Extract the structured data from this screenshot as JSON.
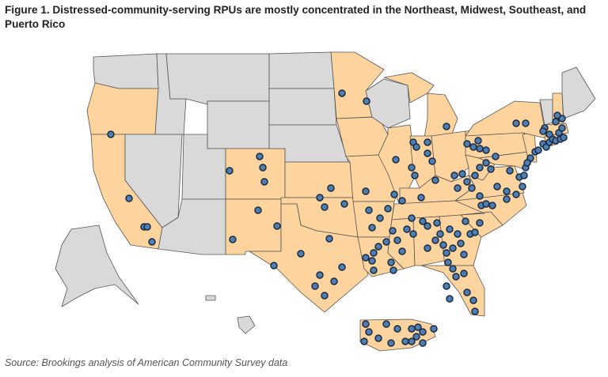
{
  "figure": {
    "title": "Figure 1. Distressed-community-serving RPUs are mostly concentrated in the Northeast, Midwest, Southeast, and Puerto Rico",
    "source": "Source: Brookings analysis of American Community Survey data"
  },
  "colors": {
    "highlighted_region": "#fdd49e",
    "other_region": "#d9d9d9",
    "border": "#555555",
    "marker_fill": "#4d7fb5",
    "marker_stroke": "#1c2b3e"
  },
  "regions": {
    "highlighted": [
      "Oregon",
      "California",
      "Colorado",
      "New Mexico",
      "Texas",
      "Oklahoma",
      "Kansas",
      "Minnesota",
      "Iowa",
      "Missouri",
      "Arkansas",
      "Louisiana",
      "Illinois",
      "Michigan",
      "Indiana",
      "Ohio",
      "Kentucky",
      "Tennessee",
      "Mississippi",
      "Alabama",
      "Georgia",
      "Florida",
      "South Carolina",
      "North Carolina",
      "Virginia",
      "West Virginia",
      "Maryland",
      "Delaware",
      "Pennsylvania",
      "New Jersey",
      "New York",
      "Connecticut",
      "Rhode Island",
      "Massachusetts",
      "New Hampshire",
      "Puerto Rico"
    ],
    "other": [
      "Washington",
      "Idaho",
      "Montana",
      "Wyoming",
      "Nevada",
      "Utah",
      "Arizona",
      "North Dakota",
      "South Dakota",
      "Nebraska",
      "Wisconsin",
      "Maine",
      "Vermont",
      "Alaska",
      "Hawaii"
    ]
  },
  "marker_icon": "circle-marker",
  "marker_count": 152
}
